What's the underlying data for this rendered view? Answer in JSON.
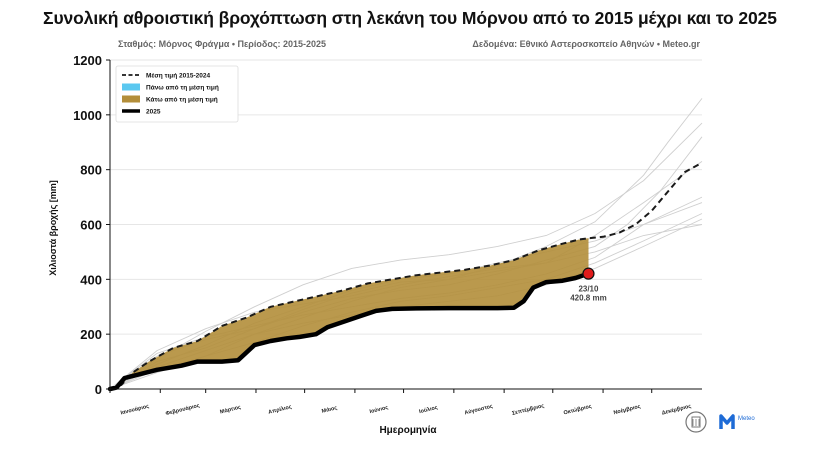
{
  "header": {
    "title": "Συνολική αθροιστική βροχόπτωση στη λεκάνη του Μόρνου από το 2015 μέχρι και το 2025",
    "subtitle_left": "Σταθμός: Μόρνος Φράγμα • Περίοδος: 2015-2025",
    "subtitle_right": "Δεδομένα: Εθνικό Αστεροσκοπείο Αθηνών • Meteo.gr"
  },
  "logos": {
    "meteo_label": "Meteo",
    "meteo_color": "#1e6bd6",
    "meteo_accent": "#1ab3e8"
  },
  "chart_data": {
    "type": "line",
    "xlabel": "Ημερομηνία",
    "ylabel": "Χιλιοστά βροχής [mm]",
    "ylim": [
      0,
      1200
    ],
    "yticks": [
      0,
      200,
      400,
      600,
      800,
      1000,
      1200
    ],
    "xlim": [
      1,
      366
    ],
    "grid": true,
    "month_starts": [
      1,
      32,
      60,
      91,
      121,
      152,
      182,
      213,
      244,
      274,
      305,
      335
    ],
    "month_labels": [
      "Ιανουάριος",
      "Φεβρουάριος",
      "Μάρτιος",
      "Απρίλιος",
      "Μάιος",
      "Ιούνιος",
      "Ιούλιος",
      "Αύγουστος",
      "Σεπτέμβριος",
      "Οκτώβριος",
      "Νοέμβριος",
      "Δεκέμβριος"
    ],
    "legend": {
      "position": "top-left",
      "entries": [
        {
          "key": "mean",
          "label": "Μέση τιμή 2015-2024"
        },
        {
          "key": "above",
          "label": "Πάνω από τη μέση τιμή"
        },
        {
          "key": "below",
          "label": "Κάτω από τη μέση τιμή"
        },
        {
          "key": "current",
          "label": "2025"
        }
      ]
    },
    "colors": {
      "mean": "#1a1a1a",
      "above": "#5bc8f0",
      "below": "#b38e3a",
      "current": "#000000",
      "history": "#cfcfcf",
      "marker": "#e01b1b"
    },
    "annotation": {
      "day": 296,
      "value": 420.8,
      "date_label": "23/10",
      "value_label": "420.8 mm"
    },
    "series": [
      {
        "name": "Μέση τιμή 2015-2024",
        "points": [
          [
            1,
            0
          ],
          [
            8,
            15
          ],
          [
            15,
            60
          ],
          [
            25,
            100
          ],
          [
            40,
            150
          ],
          [
            55,
            175
          ],
          [
            70,
            230
          ],
          [
            85,
            260
          ],
          [
            100,
            300
          ],
          [
            115,
            320
          ],
          [
            130,
            340
          ],
          [
            145,
            360
          ],
          [
            160,
            385
          ],
          [
            175,
            400
          ],
          [
            190,
            415
          ],
          [
            205,
            425
          ],
          [
            220,
            435
          ],
          [
            235,
            450
          ],
          [
            250,
            470
          ],
          [
            265,
            505
          ],
          [
            280,
            530
          ],
          [
            290,
            545
          ],
          [
            296,
            550
          ],
          [
            305,
            555
          ],
          [
            315,
            570
          ],
          [
            325,
            600
          ],
          [
            335,
            650
          ],
          [
            345,
            720
          ],
          [
            355,
            790
          ],
          [
            366,
            825
          ]
        ]
      },
      {
        "name": "2025",
        "points": [
          [
            1,
            0
          ],
          [
            5,
            5
          ],
          [
            10,
            40
          ],
          [
            20,
            55
          ],
          [
            30,
            70
          ],
          [
            45,
            85
          ],
          [
            55,
            100
          ],
          [
            70,
            100
          ],
          [
            80,
            105
          ],
          [
            90,
            160
          ],
          [
            100,
            175
          ],
          [
            110,
            185
          ],
          [
            118,
            190
          ],
          [
            128,
            200
          ],
          [
            135,
            225
          ],
          [
            145,
            245
          ],
          [
            155,
            265
          ],
          [
            165,
            285
          ],
          [
            175,
            292
          ],
          [
            190,
            294
          ],
          [
            210,
            295
          ],
          [
            240,
            295
          ],
          [
            250,
            296
          ],
          [
            256,
            320
          ],
          [
            262,
            370
          ],
          [
            270,
            390
          ],
          [
            280,
            395
          ],
          [
            288,
            405
          ],
          [
            296,
            420.8
          ]
        ]
      }
    ],
    "history_years": [
      [
        [
          1,
          0
        ],
        [
          30,
          70
        ],
        [
          60,
          120
        ],
        [
          90,
          200
        ],
        [
          120,
          260
        ],
        [
          150,
          320
        ],
        [
          180,
          370
        ],
        [
          210,
          400
        ],
        [
          240,
          450
        ],
        [
          270,
          520
        ],
        [
          300,
          610
        ],
        [
          330,
          780
        ],
        [
          345,
          900
        ],
        [
          366,
          1060
        ]
      ],
      [
        [
          1,
          0
        ],
        [
          30,
          120
        ],
        [
          60,
          180
        ],
        [
          90,
          220
        ],
        [
          120,
          280
        ],
        [
          150,
          330
        ],
        [
          180,
          360
        ],
        [
          210,
          380
        ],
        [
          240,
          420
        ],
        [
          270,
          470
        ],
        [
          300,
          520
        ],
        [
          320,
          600
        ],
        [
          340,
          720
        ],
        [
          366,
          920
        ]
      ],
      [
        [
          1,
          0
        ],
        [
          30,
          90
        ],
        [
          60,
          160
        ],
        [
          90,
          240
        ],
        [
          120,
          300
        ],
        [
          150,
          360
        ],
        [
          180,
          400
        ],
        [
          210,
          420
        ],
        [
          240,
          460
        ],
        [
          270,
          500
        ],
        [
          300,
          540
        ],
        [
          330,
          600
        ],
        [
          366,
          680
        ]
      ],
      [
        [
          1,
          0
        ],
        [
          30,
          140
        ],
        [
          60,
          220
        ],
        [
          90,
          280
        ],
        [
          120,
          310
        ],
        [
          150,
          340
        ],
        [
          180,
          380
        ],
        [
          210,
          410
        ],
        [
          240,
          440
        ],
        [
          270,
          460
        ],
        [
          300,
          500
        ],
        [
          330,
          560
        ],
        [
          366,
          600
        ]
      ],
      [
        [
          1,
          0
        ],
        [
          30,
          60
        ],
        [
          60,
          120
        ],
        [
          90,
          170
        ],
        [
          120,
          230
        ],
        [
          150,
          280
        ],
        [
          180,
          320
        ],
        [
          210,
          340
        ],
        [
          240,
          370
        ],
        [
          270,
          400
        ],
        [
          300,
          460
        ],
        [
          330,
          540
        ],
        [
          366,
          640
        ]
      ],
      [
        [
          1,
          0
        ],
        [
          30,
          110
        ],
        [
          60,
          210
        ],
        [
          90,
          300
        ],
        [
          120,
          380
        ],
        [
          150,
          440
        ],
        [
          180,
          470
        ],
        [
          210,
          490
        ],
        [
          240,
          520
        ],
        [
          270,
          560
        ],
        [
          300,
          640
        ],
        [
          330,
          760
        ],
        [
          366,
          970
        ]
      ],
      [
        [
          1,
          0
        ],
        [
          30,
          80
        ],
        [
          60,
          140
        ],
        [
          90,
          200
        ],
        [
          120,
          240
        ],
        [
          150,
          270
        ],
        [
          180,
          300
        ],
        [
          210,
          320
        ],
        [
          240,
          340
        ],
        [
          270,
          380
        ],
        [
          300,
          440
        ],
        [
          330,
          520
        ],
        [
          366,
          620
        ]
      ],
      [
        [
          1,
          0
        ],
        [
          30,
          100
        ],
        [
          60,
          150
        ],
        [
          90,
          220
        ],
        [
          120,
          290
        ],
        [
          150,
          350
        ],
        [
          180,
          390
        ],
        [
          210,
          400
        ],
        [
          240,
          430
        ],
        [
          270,
          460
        ],
        [
          300,
          560
        ],
        [
          330,
          680
        ],
        [
          366,
          830
        ]
      ],
      [
        [
          1,
          0
        ],
        [
          30,
          130
        ],
        [
          60,
          190
        ],
        [
          90,
          230
        ],
        [
          120,
          270
        ],
        [
          150,
          300
        ],
        [
          180,
          330
        ],
        [
          210,
          350
        ],
        [
          240,
          380
        ],
        [
          270,
          420
        ],
        [
          300,
          480
        ],
        [
          330,
          600
        ],
        [
          366,
          700
        ]
      ]
    ]
  }
}
